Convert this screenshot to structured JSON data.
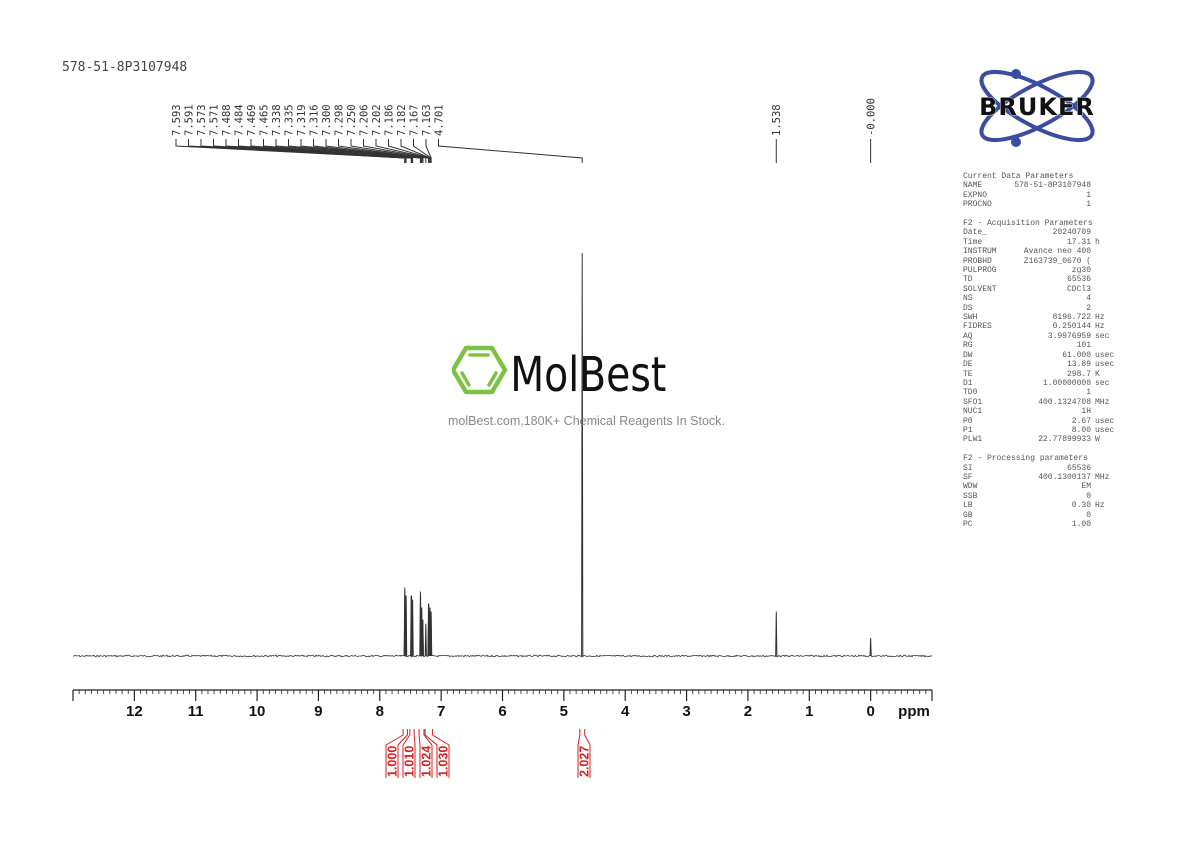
{
  "sample_name": "578-51-8P3107948",
  "brand": {
    "bruker": "BRUKER",
    "molbest": "MolBest",
    "tagline": "molBest.com,180K+ Chemical Reagents In Stock.",
    "bruker_color": "#3b4da0",
    "molbest_color": "#7dc242"
  },
  "parameters": [
    {
      "title": "Current Data Parameters",
      "rows": [
        [
          "NAME",
          "578-51-8P3107948",
          ""
        ],
        [
          "EXPNO",
          "1",
          ""
        ],
        [
          "PROCNO",
          "1",
          ""
        ]
      ]
    },
    {
      "title": "F2 - Acquisition Parameters",
      "rows": [
        [
          "Date_",
          "20240709",
          ""
        ],
        [
          "Time",
          "17.31",
          "h"
        ],
        [
          "INSTRUM",
          "Avance neo 400",
          ""
        ],
        [
          "PROBHD",
          "Z163739_0670 (",
          ""
        ],
        [
          "PULPROG",
          "zg30",
          ""
        ],
        [
          "TD",
          "65536",
          ""
        ],
        [
          "SOLVENT",
          "CDCl3",
          ""
        ],
        [
          "NS",
          "4",
          ""
        ],
        [
          "DS",
          "2",
          ""
        ],
        [
          "SWH",
          "8196.722",
          "Hz"
        ],
        [
          "FIDRES",
          "0.250144",
          "Hz"
        ],
        [
          "AQ",
          "3.9976959",
          "sec"
        ],
        [
          "RG",
          "101",
          ""
        ],
        [
          "DW",
          "61.000",
          "usec"
        ],
        [
          "DE",
          "13.89",
          "usec"
        ],
        [
          "TE",
          "298.7",
          "K"
        ],
        [
          "D1",
          "1.00000000",
          "sec"
        ],
        [
          "TD0",
          "1",
          ""
        ],
        [
          "SFO1",
          "400.1324708",
          "MHz"
        ],
        [
          "NUC1",
          "1H",
          ""
        ],
        [
          "P0",
          "2.67",
          "usec"
        ],
        [
          "P1",
          "8.00",
          "usec"
        ],
        [
          "PLW1",
          "22.77899933",
          "W"
        ]
      ]
    },
    {
      "title": "F2 - Processing parameters",
      "rows": [
        [
          "SI",
          "65536",
          ""
        ],
        [
          "SF",
          "400.1300137",
          "MHz"
        ],
        [
          "WDW",
          "EM",
          ""
        ],
        [
          "SSB",
          "0",
          ""
        ],
        [
          "LB",
          "0.30",
          "Hz"
        ],
        [
          "GB",
          "0",
          ""
        ],
        [
          "PC",
          "1.00",
          ""
        ]
      ]
    }
  ],
  "chart_data": {
    "type": "line",
    "xlabel": "ppm",
    "xlim": [
      13.0,
      -1.0
    ],
    "x_reversed": true,
    "x_ticks": [
      "12",
      "11",
      "10",
      "9",
      "8",
      "7",
      "6",
      "5",
      "4",
      "3",
      "2",
      "1",
      "0"
    ],
    "ylim_relative_intensity": [
      0,
      100
    ],
    "line_color": "#333333",
    "peaks": [
      {
        "ppm": 7.593,
        "intensity": 17
      },
      {
        "ppm": 7.591,
        "intensity": 16
      },
      {
        "ppm": 7.573,
        "intensity": 15
      },
      {
        "ppm": 7.571,
        "intensity": 15
      },
      {
        "ppm": 7.488,
        "intensity": 15
      },
      {
        "ppm": 7.484,
        "intensity": 15
      },
      {
        "ppm": 7.469,
        "intensity": 14
      },
      {
        "ppm": 7.465,
        "intensity": 14
      },
      {
        "ppm": 7.338,
        "intensity": 16
      },
      {
        "ppm": 7.335,
        "intensity": 15
      },
      {
        "ppm": 7.319,
        "intensity": 12
      },
      {
        "ppm": 7.316,
        "intensity": 12
      },
      {
        "ppm": 7.3,
        "intensity": 9
      },
      {
        "ppm": 7.298,
        "intensity": 9
      },
      {
        "ppm": 7.25,
        "intensity": 8
      },
      {
        "ppm": 7.206,
        "intensity": 13
      },
      {
        "ppm": 7.202,
        "intensity": 13
      },
      {
        "ppm": 7.186,
        "intensity": 12
      },
      {
        "ppm": 7.182,
        "intensity": 12
      },
      {
        "ppm": 7.167,
        "intensity": 11
      },
      {
        "ppm": 7.163,
        "intensity": 11
      },
      {
        "ppm": 4.701,
        "intensity": 100
      },
      {
        "ppm": 1.538,
        "intensity": 11
      },
      {
        "ppm": 0.0,
        "intensity": 4.5
      }
    ],
    "peak_labels": [
      "7.593",
      "7.591",
      "7.573",
      "7.571",
      "7.488",
      "7.484",
      "7.469",
      "7.465",
      "7.338",
      "7.335",
      "7.319",
      "7.316",
      "7.300",
      "7.298",
      "7.250",
      "7.206",
      "7.202",
      "7.186",
      "7.182",
      "7.167",
      "7.163",
      "4.701",
      "1.538",
      "-0.000"
    ],
    "integrals": [
      {
        "label": "1.000",
        "from": 7.62,
        "to": 7.55
      },
      {
        "label": "1.010",
        "from": 7.51,
        "to": 7.44
      },
      {
        "label": "1.024",
        "from": 7.36,
        "to": 7.28
      },
      {
        "label": "1.030",
        "from": 7.26,
        "to": 7.14
      },
      {
        "label": "2.027",
        "from": 4.74,
        "to": 4.66
      }
    ],
    "integral_color": "#d42020"
  }
}
